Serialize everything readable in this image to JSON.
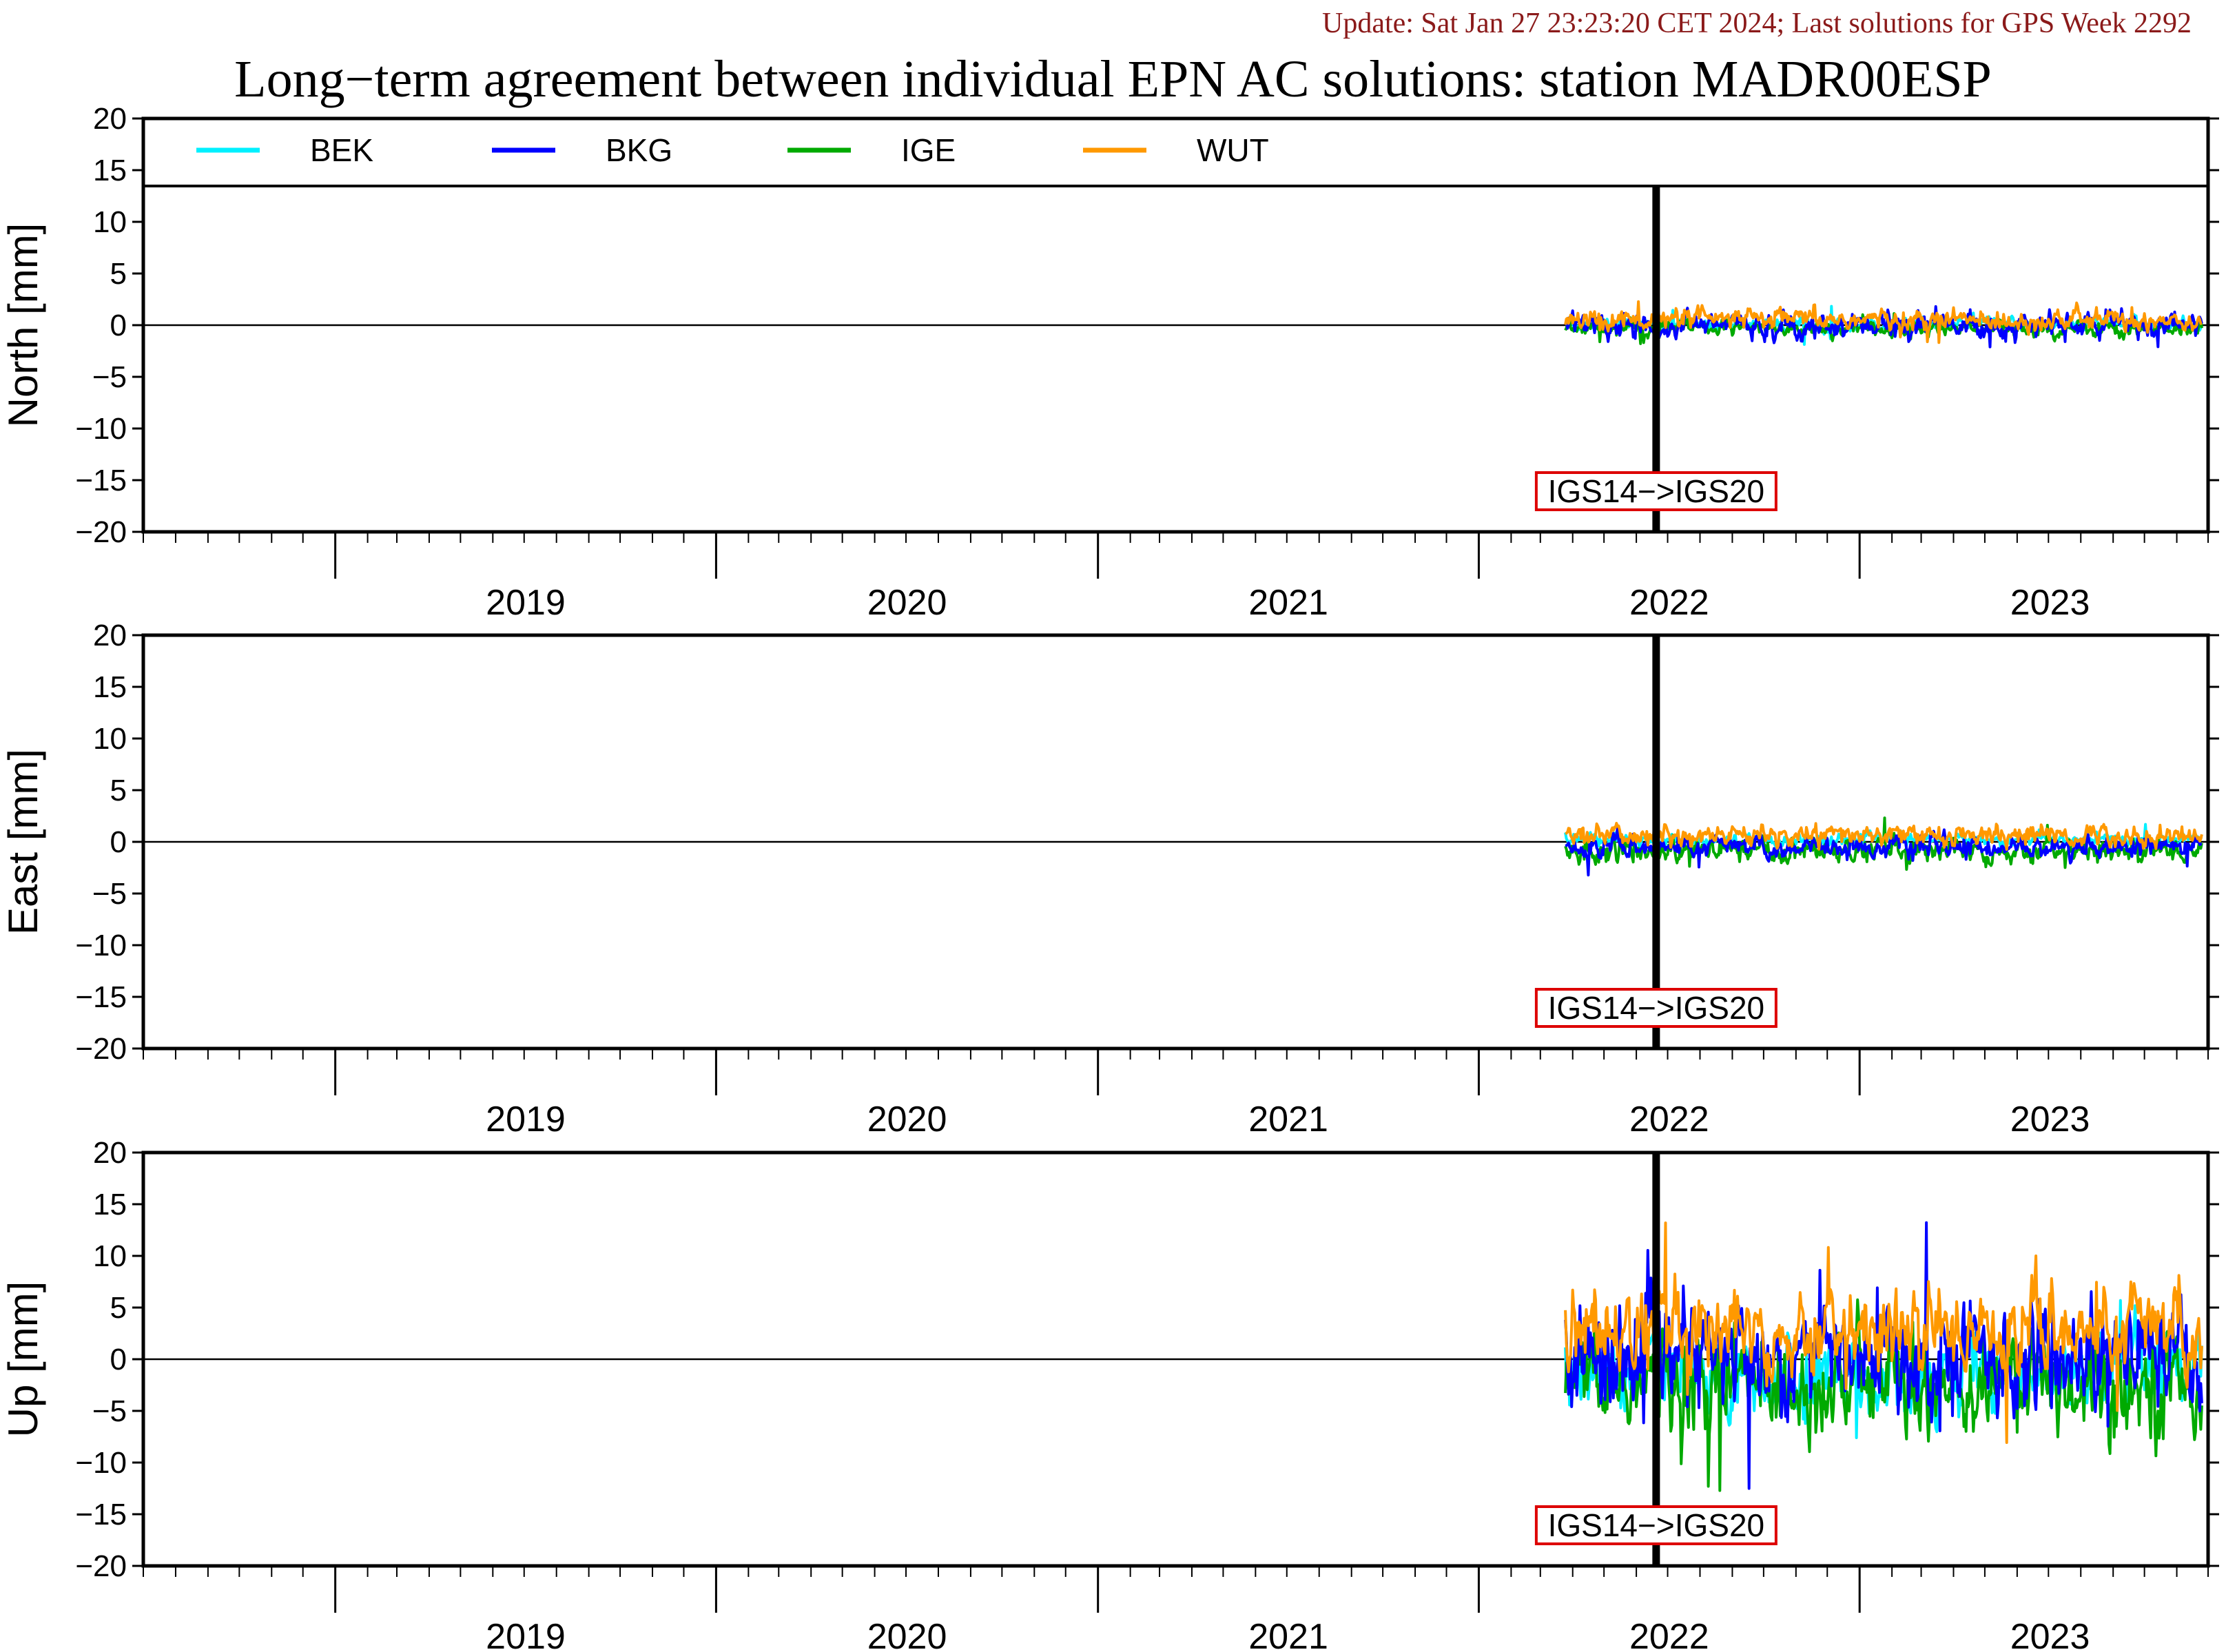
{
  "update_note": "Update: Sat Jan 27 23:23:20 CET 2024; Last solutions for GPS Week 2292",
  "title": "Long−term agreement between individual EPN AC solutions: station MADR00ESP",
  "colors": {
    "BEK": "#00f0ff",
    "BKG": "#0000ff",
    "IGE": "#00aa00",
    "WUT": "#ff9900",
    "annotation_box": "#dd0000",
    "update_note": "#8b1a1a"
  },
  "chart_data": {
    "type": "line",
    "x_axis": {
      "range": [
        "2018-07-01",
        "2023-12-01"
      ],
      "year_labels": [
        "2019",
        "2020",
        "2021",
        "2022",
        "2023"
      ]
    },
    "legend": {
      "placement": "top-left",
      "entries": [
        "BEK",
        "BKG",
        "IGE",
        "WUT"
      ]
    },
    "panels": [
      {
        "ylabel": "North [mm]",
        "ylim": [
          -20,
          20
        ],
        "yticks": [
          "20",
          "15",
          "10",
          "5",
          "0",
          "−5",
          "−10",
          "−15",
          "−20"
        ],
        "annotation": "IGS14−>IGS20",
        "frame_change_date": "2022-06-20",
        "has_legend": true,
        "noise_estimate_mm": {
          "BEK": 0.3,
          "BKG": 0.6,
          "IGE": 0.4,
          "WUT": 0.5
        },
        "offset_estimate_mm": {
          "BEK": 0.1,
          "BKG": 0.0,
          "IGE": -0.3,
          "WUT": 0.5
        }
      },
      {
        "ylabel": "East [mm]",
        "ylim": [
          -20,
          20
        ],
        "yticks": [
          "20",
          "15",
          "10",
          "5",
          "0",
          "−5",
          "−10",
          "−15",
          "−20"
        ],
        "annotation": "IGS14−>IGS20",
        "frame_change_date": "2022-06-20",
        "has_legend": false,
        "noise_estimate_mm": {
          "BEK": 0.3,
          "BKG": 0.5,
          "IGE": 0.6,
          "WUT": 0.5
        },
        "offset_estimate_mm": {
          "BEK": 0.2,
          "BKG": -0.5,
          "IGE": -0.8,
          "WUT": 0.6
        }
      },
      {
        "ylabel": "Up [mm]",
        "ylim": [
          -20,
          20
        ],
        "yticks": [
          "20",
          "15",
          "10",
          "5",
          "0",
          "−5",
          "−10",
          "−15",
          "−20"
        ],
        "annotation": "IGS14−>IGS20",
        "frame_change_date": "2022-06-20",
        "has_legend": false,
        "noise_estimate_mm": {
          "BEK": 1.8,
          "BKG": 2.6,
          "IGE": 2.4,
          "WUT": 2.0
        },
        "offset_estimate_mm": {
          "BEK": -1.5,
          "BKG": 0.3,
          "IGE": -2.2,
          "WUT": 2.8
        }
      }
    ],
    "series_date_range": [
      "2022-03-25",
      "2023-11-25"
    ]
  }
}
